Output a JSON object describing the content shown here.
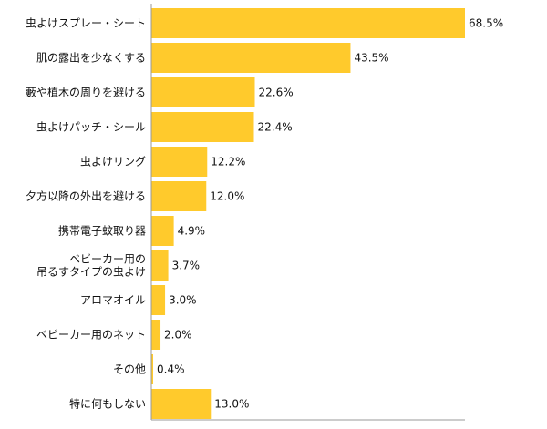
{
  "chart_data": {
    "type": "bar",
    "orientation": "horizontal",
    "categories": [
      [
        "虫よけスプレー・シート"
      ],
      [
        "肌の露出を少なくする"
      ],
      [
        "藪や植木の周りを避ける"
      ],
      [
        "虫よけパッチ・シール"
      ],
      [
        "虫よけリング"
      ],
      [
        "夕方以降の外出を避ける"
      ],
      [
        "携帯電子蚊取り器"
      ],
      [
        "ベビーカー用の",
        "吊るすタイプの虫よけ"
      ],
      [
        "アロマオイル"
      ],
      [
        "ベビーカー用のネット"
      ],
      [
        "その他"
      ],
      [
        "特に何もしない"
      ]
    ],
    "values": [
      68.5,
      43.5,
      22.6,
      22.4,
      12.2,
      12.0,
      4.9,
      3.7,
      3.0,
      2.0,
      0.4,
      13.0
    ],
    "value_labels": [
      "68.5%",
      "43.5%",
      "22.6%",
      "22.4%",
      "12.2%",
      "12.0%",
      "4.9%",
      "3.7%",
      "3.0%",
      "2.0%",
      "0.4%",
      "13.0%"
    ],
    "xlim": [
      0,
      68.5
    ],
    "bar_color": "#FFCA2C",
    "axis_color": "#999999",
    "grid": false,
    "legend": "none"
  }
}
